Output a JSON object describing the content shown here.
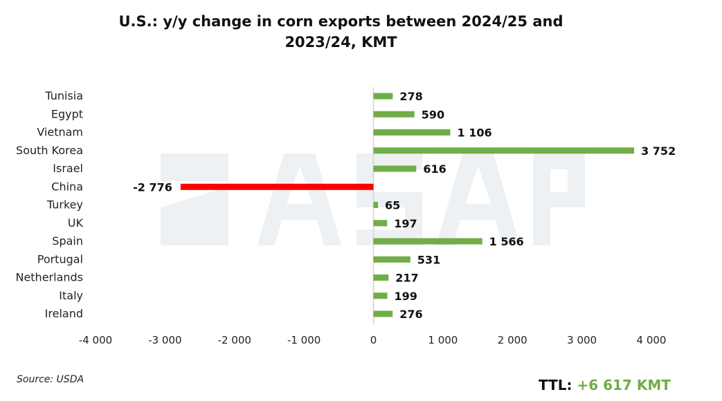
{
  "chart_data": {
    "type": "bar",
    "orientation": "horizontal",
    "title": "U.S.: y/y change in corn exports between 2024/25 and 2023/24, KMT",
    "title_lines": [
      "U.S.: y/y change in corn exports between 2024/25 and",
      "2023/24, KMT"
    ],
    "categories": [
      "Tunisia",
      "Egypt",
      "Vietnam",
      "South Korea",
      "Israel",
      "China",
      "Turkey",
      "UK",
      "Spain",
      "Portugal",
      "Netherlands",
      "Italy",
      "Ireland"
    ],
    "values": [
      278,
      590,
      1106,
      3752,
      616,
      -2776,
      65,
      197,
      1566,
      531,
      217,
      199,
      276
    ],
    "value_labels": [
      "278",
      "590",
      "1 106",
      "3 752",
      "616",
      "-2 776",
      "65",
      "197",
      "1 566",
      "531",
      "217",
      "199",
      "276"
    ],
    "xlim": [
      -4000,
      4000
    ],
    "xticks": [
      -4000,
      -3000,
      -2000,
      -1000,
      0,
      1000,
      2000,
      3000,
      4000
    ],
    "xtick_labels": [
      "-4 000",
      "-3 000",
      "-2 000",
      "-1 000",
      "0",
      "1 000",
      "2 000",
      "3 000",
      "4 000"
    ],
    "xlabel": "",
    "ylabel": "",
    "grid": false,
    "colors": {
      "positive": "#70ad47",
      "negative": "#ff0000"
    }
  },
  "source": "Source: USDA",
  "total": {
    "label": "TTL:",
    "value": "+6 617 KMT"
  },
  "watermark": "ASAP"
}
